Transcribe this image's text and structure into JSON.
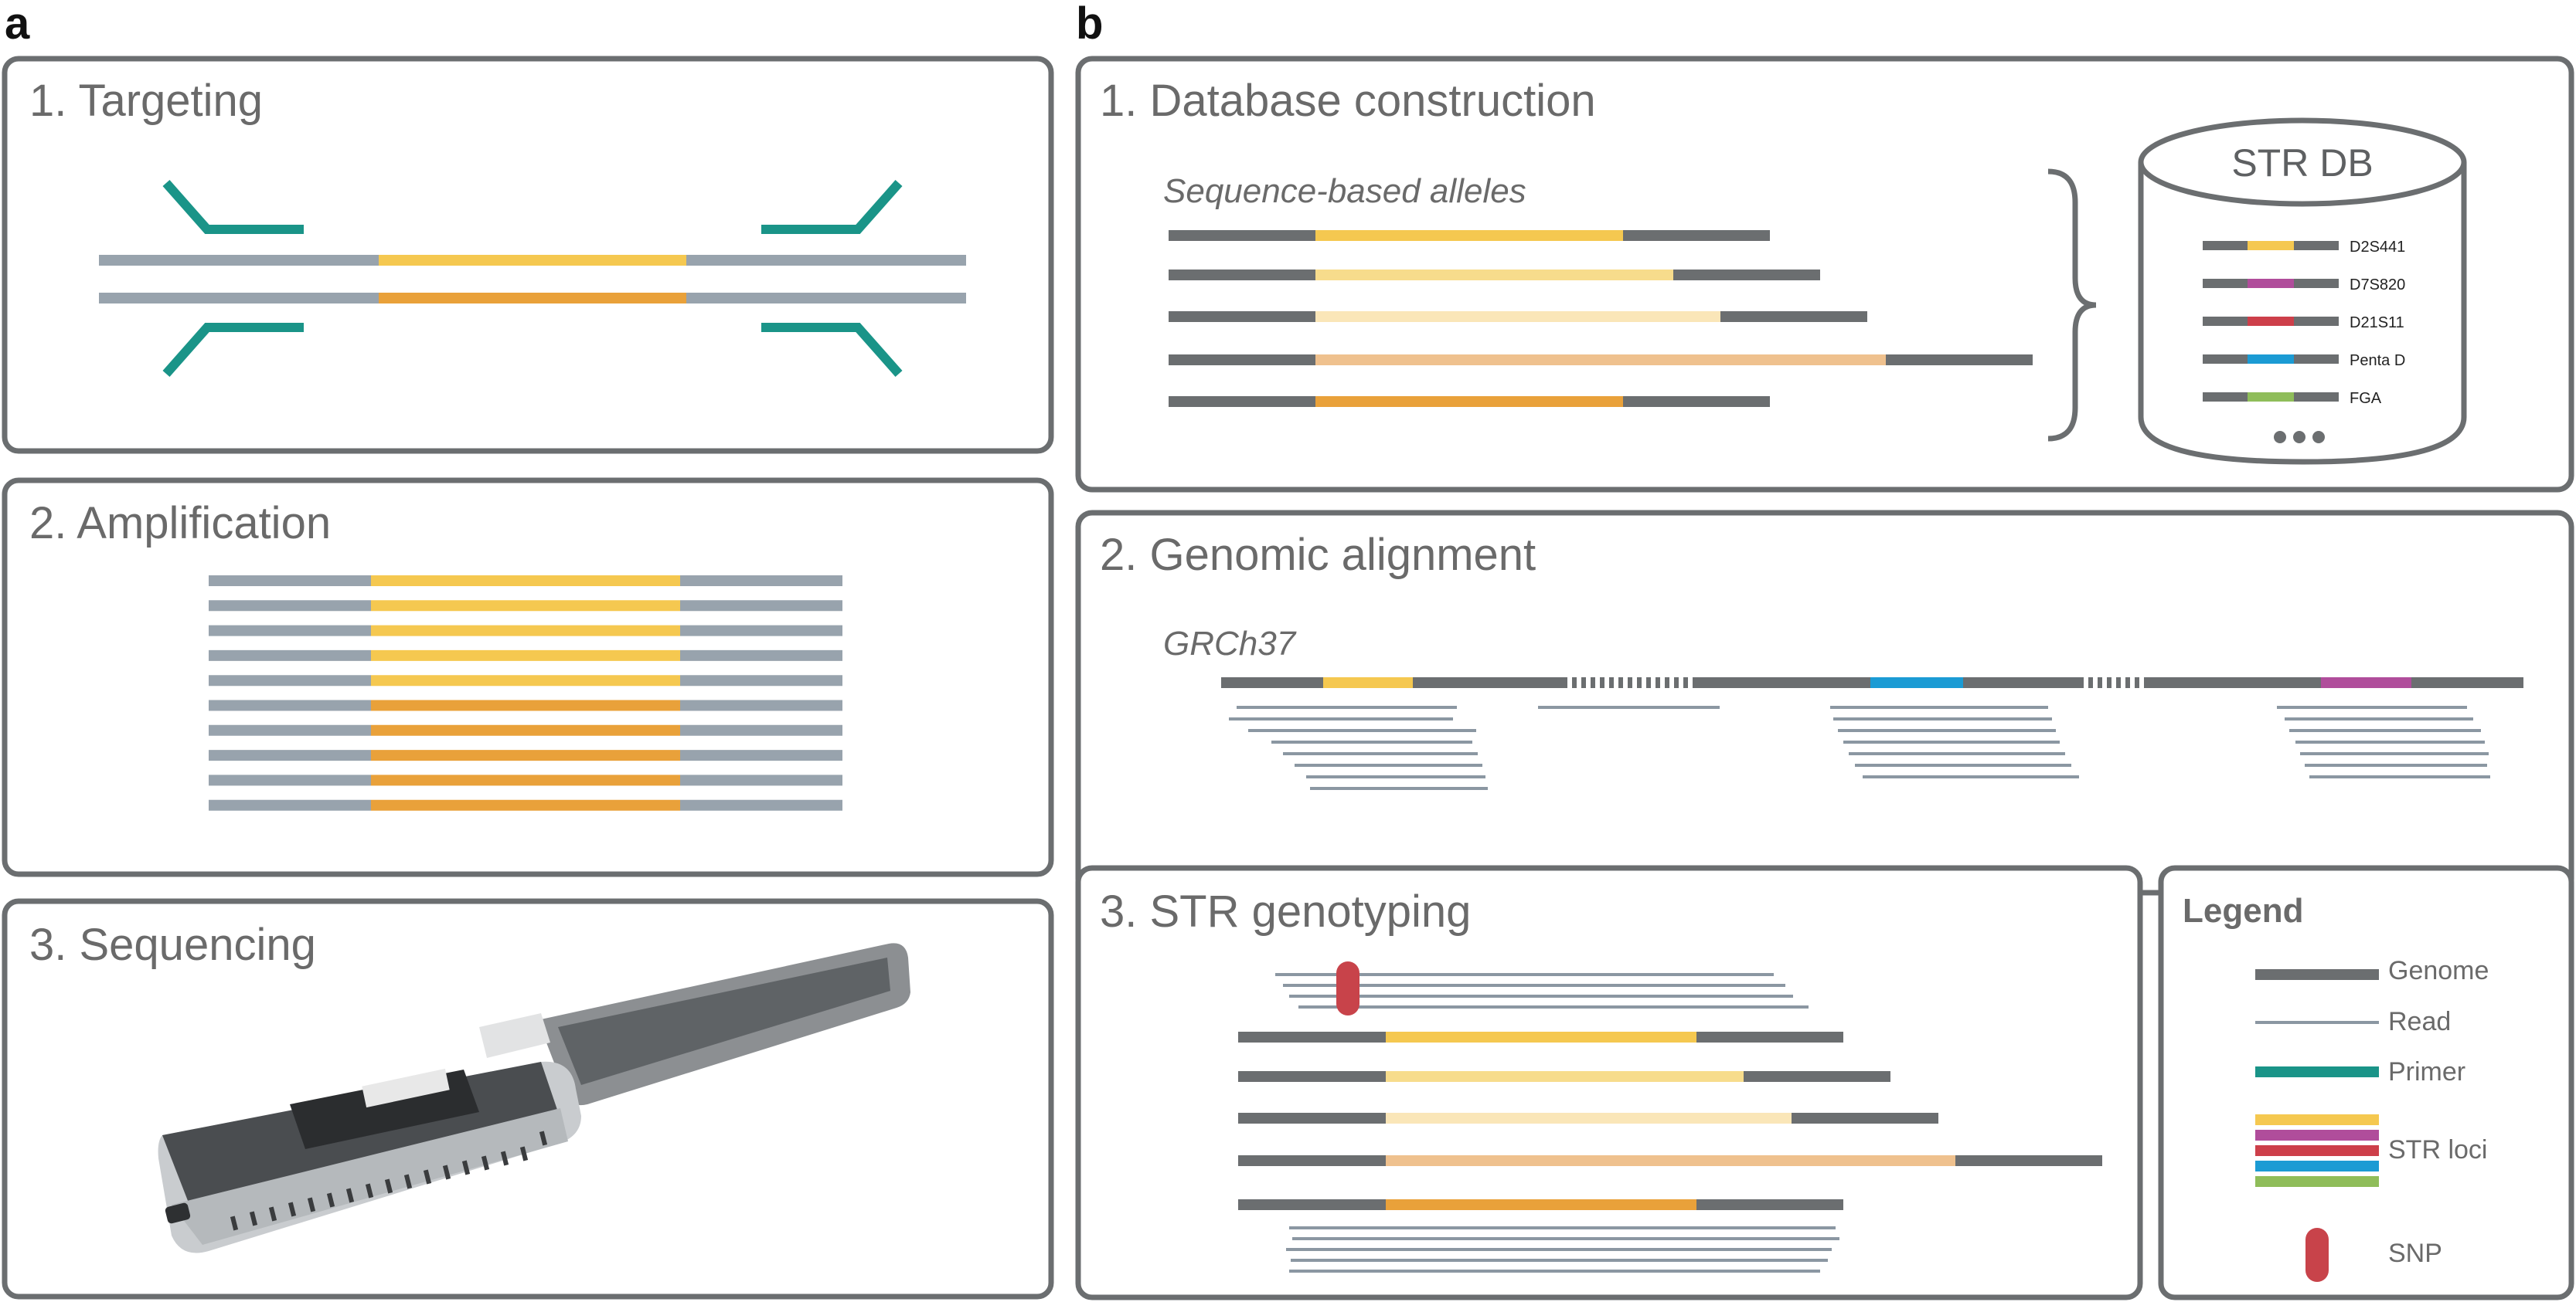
{
  "panels": {
    "a": {
      "letter": "a",
      "boxes": [
        {
          "title": "1. Targeting"
        },
        {
          "title": "2. Amplification"
        },
        {
          "title": "3. Sequencing"
        }
      ]
    },
    "b": {
      "letter": "b",
      "database": {
        "title": "1. Database construction",
        "alleles_label": "Sequence-based alleles",
        "db_title": "STR DB",
        "loci": [
          "D2S441",
          "D7S820",
          "D21S11",
          "Penta D",
          "FGA"
        ]
      },
      "alignment": {
        "title": "2. Genomic alignment",
        "reference": "GRCh37"
      },
      "genotyping": {
        "title": "3. STR genotyping"
      },
      "legend": {
        "title": "Legend",
        "items": {
          "genome": "Genome",
          "read": "Read",
          "primer": "Primer",
          "str_loci": "STR loci",
          "snp": "SNP"
        }
      }
    }
  },
  "colors": {
    "genome": "#6b6e70",
    "flank": "#98a3ad",
    "primer": "#1a9488",
    "str_yellow": "#f5c850",
    "str_orange": "#e9a13a",
    "str_light": "#f7dc8c",
    "str_pale": "#fae6b8",
    "str_peach": "#efc18e",
    "str_magenta": "#b04d9b",
    "str_red": "#cd3f4a",
    "str_blue": "#1b9bd4",
    "str_green": "#8fbd5a",
    "snp": "#c8434a"
  }
}
